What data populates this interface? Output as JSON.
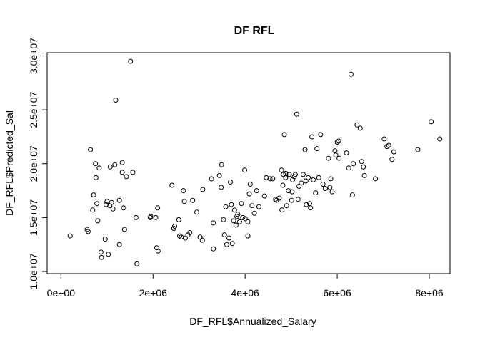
{
  "chart_data": {
    "type": "scatter",
    "title": "DF RFL",
    "xlabel": "DF_RFL$Annualized_Salary",
    "ylabel": "DF_RFL$Predicted_Sal",
    "xlim": [
      -300000,
      8450000
    ],
    "ylim": [
      9800000,
      30300000
    ],
    "x_ticks": [
      0,
      2000000,
      4000000,
      6000000,
      8000000
    ],
    "x_tick_labels": [
      "0e+00",
      "2e+06",
      "4e+06",
      "6e+06",
      "8e+06"
    ],
    "y_ticks": [
      10000000,
      15000000,
      20000000,
      25000000,
      30000000
    ],
    "y_tick_labels": [
      "1.0e+07",
      "1.5e+07",
      "2.0e+07",
      "2.5e+07",
      "3.0e+07"
    ],
    "grid": false,
    "marker": "open-circle",
    "points": [
      [
        200000,
        13300000
      ],
      [
        570000,
        13900000
      ],
      [
        590000,
        13700000
      ],
      [
        640000,
        21300000
      ],
      [
        690000,
        15700000
      ],
      [
        710000,
        17100000
      ],
      [
        750000,
        20000000
      ],
      [
        760000,
        18700000
      ],
      [
        780000,
        16300000
      ],
      [
        800000,
        14700000
      ],
      [
        830000,
        19600000
      ],
      [
        870000,
        11800000
      ],
      [
        880000,
        11300000
      ],
      [
        960000,
        13000000
      ],
      [
        980000,
        16200000
      ],
      [
        1000000,
        16500000
      ],
      [
        1030000,
        11600000
      ],
      [
        1060000,
        16100000
      ],
      [
        1070000,
        19700000
      ],
      [
        1100000,
        16400000
      ],
      [
        1130000,
        15800000
      ],
      [
        1170000,
        19900000
      ],
      [
        1190000,
        25900000
      ],
      [
        1270000,
        12500000
      ],
      [
        1270000,
        16600000
      ],
      [
        1330000,
        19200000
      ],
      [
        1330000,
        20100000
      ],
      [
        1360000,
        15900000
      ],
      [
        1380000,
        13900000
      ],
      [
        1420000,
        18800000
      ],
      [
        1510000,
        29500000
      ],
      [
        1560000,
        19200000
      ],
      [
        1630000,
        15000000
      ],
      [
        1650000,
        10700000
      ],
      [
        1940000,
        15000000
      ],
      [
        1950000,
        15100000
      ],
      [
        2060000,
        15000000
      ],
      [
        2080000,
        12200000
      ],
      [
        2110000,
        11900000
      ],
      [
        2100000,
        15900000
      ],
      [
        2410000,
        18000000
      ],
      [
        2450000,
        14000000
      ],
      [
        2470000,
        14200000
      ],
      [
        2560000,
        14800000
      ],
      [
        2580000,
        13300000
      ],
      [
        2610000,
        13200000
      ],
      [
        2660000,
        17500000
      ],
      [
        2680000,
        16500000
      ],
      [
        2700000,
        13100000
      ],
      [
        2760000,
        13400000
      ],
      [
        2800000,
        13600000
      ],
      [
        2860000,
        16600000
      ],
      [
        2950000,
        15500000
      ],
      [
        3020000,
        13200000
      ],
      [
        3070000,
        12900000
      ],
      [
        3080000,
        17600000
      ],
      [
        3270000,
        18600000
      ],
      [
        3310000,
        14500000
      ],
      [
        3310000,
        12100000
      ],
      [
        3440000,
        18900000
      ],
      [
        3480000,
        17800000
      ],
      [
        3490000,
        19900000
      ],
      [
        3530000,
        14800000
      ],
      [
        3550000,
        13400000
      ],
      [
        3580000,
        16000000
      ],
      [
        3600000,
        12500000
      ],
      [
        3650000,
        13100000
      ],
      [
        3680000,
        18300000
      ],
      [
        3700000,
        16200000
      ],
      [
        3720000,
        12600000
      ],
      [
        3750000,
        14700000
      ],
      [
        3770000,
        15700000
      ],
      [
        3800000,
        14300000
      ],
      [
        3820000,
        15100000
      ],
      [
        3840000,
        15300000
      ],
      [
        3880000,
        14600000
      ],
      [
        3920000,
        16300000
      ],
      [
        3950000,
        15000000
      ],
      [
        3990000,
        19400000
      ],
      [
        4000000,
        14900000
      ],
      [
        4060000,
        13300000
      ],
      [
        4060000,
        14600000
      ],
      [
        4090000,
        17200000
      ],
      [
        4110000,
        18100000
      ],
      [
        4150000,
        16100000
      ],
      [
        4200000,
        15400000
      ],
      [
        4250000,
        17500000
      ],
      [
        4300000,
        16000000
      ],
      [
        4420000,
        17000000
      ],
      [
        4460000,
        18700000
      ],
      [
        4540000,
        18600000
      ],
      [
        4600000,
        18600000
      ],
      [
        4660000,
        16700000
      ],
      [
        4680000,
        16600000
      ],
      [
        4740000,
        16800000
      ],
      [
        4790000,
        19400000
      ],
      [
        4800000,
        15700000
      ],
      [
        4820000,
        18000000
      ],
      [
        4830000,
        19000000
      ],
      [
        4850000,
        22700000
      ],
      [
        4880000,
        18700000
      ],
      [
        4880000,
        19100000
      ],
      [
        4900000,
        16100000
      ],
      [
        4940000,
        17500000
      ],
      [
        4960000,
        19000000
      ],
      [
        5010000,
        16600000
      ],
      [
        5020000,
        17400000
      ],
      [
        5030000,
        18500000
      ],
      [
        5070000,
        18800000
      ],
      [
        5090000,
        19000000
      ],
      [
        5120000,
        24600000
      ],
      [
        5150000,
        16700000
      ],
      [
        5170000,
        17900000
      ],
      [
        5220000,
        18200000
      ],
      [
        5260000,
        19000000
      ],
      [
        5300000,
        21300000
      ],
      [
        5320000,
        18400000
      ],
      [
        5330000,
        16200000
      ],
      [
        5370000,
        18700000
      ],
      [
        5400000,
        16300000
      ],
      [
        5420000,
        15900000
      ],
      [
        5450000,
        22500000
      ],
      [
        5480000,
        18500000
      ],
      [
        5530000,
        17300000
      ],
      [
        5560000,
        21400000
      ],
      [
        5600000,
        18700000
      ],
      [
        5640000,
        22700000
      ],
      [
        5690000,
        18100000
      ],
      [
        5740000,
        17700000
      ],
      [
        5810000,
        20500000
      ],
      [
        5840000,
        17800000
      ],
      [
        5860000,
        18600000
      ],
      [
        5890000,
        17400000
      ],
      [
        5950000,
        21200000
      ],
      [
        5970000,
        20800000
      ],
      [
        6000000,
        22000000
      ],
      [
        6030000,
        22100000
      ],
      [
        6040000,
        20500000
      ],
      [
        6200000,
        21000000
      ],
      [
        6250000,
        19600000
      ],
      [
        6300000,
        28300000
      ],
      [
        6330000,
        17100000
      ],
      [
        6350000,
        20000000
      ],
      [
        6430000,
        23600000
      ],
      [
        6500000,
        23300000
      ],
      [
        6530000,
        20200000
      ],
      [
        6570000,
        19700000
      ],
      [
        6590000,
        18900000
      ],
      [
        6830000,
        18600000
      ],
      [
        7020000,
        22300000
      ],
      [
        7080000,
        21600000
      ],
      [
        7120000,
        21700000
      ],
      [
        7190000,
        20400000
      ],
      [
        7230000,
        21100000
      ],
      [
        7750000,
        21300000
      ],
      [
        8040000,
        23900000
      ],
      [
        8230000,
        22300000
      ]
    ]
  }
}
